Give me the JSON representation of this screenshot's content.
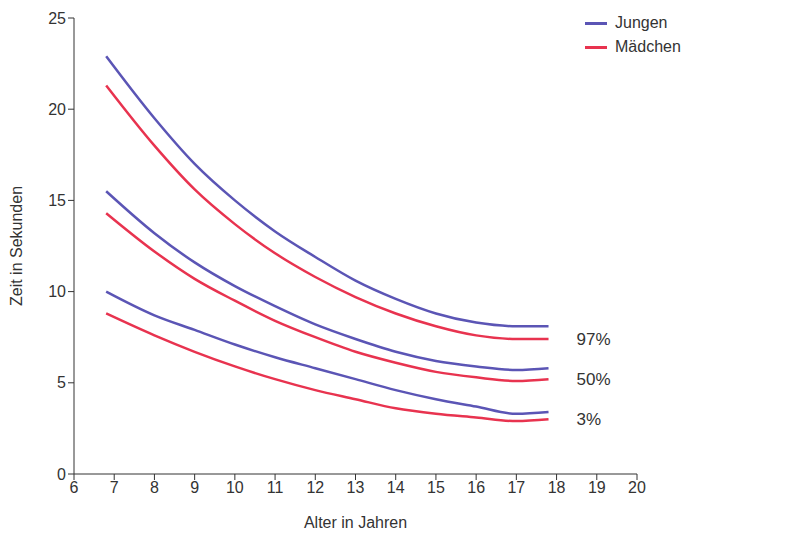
{
  "chart_data": {
    "type": "line",
    "xlabel": "Alter in Jahren",
    "ylabel": "Zeit in Sekunden",
    "x": [
      6.8,
      8,
      9,
      10,
      11,
      12,
      13,
      14,
      15,
      16,
      17,
      17.8
    ],
    "xlim": [
      6,
      20
    ],
    "xticks": [
      6,
      7,
      8,
      9,
      10,
      11,
      12,
      13,
      14,
      15,
      16,
      17,
      18,
      19,
      20
    ],
    "ylim": [
      0,
      25
    ],
    "yticks": [
      0,
      5,
      10,
      15,
      20,
      25
    ],
    "grid": false,
    "legend": "upper right",
    "groups": [
      {
        "label": "97%",
        "series": [
          {
            "name": "Jungen",
            "color": "#5b55b5",
            "values": [
              22.9,
              19.5,
              17.0,
              15.0,
              13.3,
              11.9,
              10.6,
              9.6,
              8.8,
              8.3,
              8.1,
              8.1
            ]
          },
          {
            "name": "Mädchen",
            "color": "#e8334f",
            "values": [
              21.3,
              18.0,
              15.6,
              13.7,
              12.1,
              10.8,
              9.7,
              8.8,
              8.1,
              7.6,
              7.4,
              7.4
            ]
          }
        ]
      },
      {
        "label": "50%",
        "series": [
          {
            "name": "Jungen",
            "color": "#5b55b5",
            "values": [
              15.5,
              13.2,
              11.6,
              10.3,
              9.2,
              8.2,
              7.4,
              6.7,
              6.2,
              5.9,
              5.7,
              5.8
            ]
          },
          {
            "name": "Mädchen",
            "color": "#e8334f",
            "values": [
              14.3,
              12.2,
              10.7,
              9.5,
              8.4,
              7.5,
              6.7,
              6.1,
              5.6,
              5.3,
              5.1,
              5.2
            ]
          }
        ]
      },
      {
        "label": "3%",
        "series": [
          {
            "name": "Jungen",
            "color": "#5b55b5",
            "values": [
              10.0,
              8.7,
              7.9,
              7.1,
              6.4,
              5.8,
              5.2,
              4.6,
              4.1,
              3.7,
              3.3,
              3.4
            ]
          },
          {
            "name": "Mädchen",
            "color": "#e8334f",
            "values": [
              8.8,
              7.6,
              6.7,
              5.9,
              5.2,
              4.6,
              4.1,
              3.6,
              3.3,
              3.1,
              2.9,
              3.0
            ]
          }
        ]
      }
    ]
  }
}
